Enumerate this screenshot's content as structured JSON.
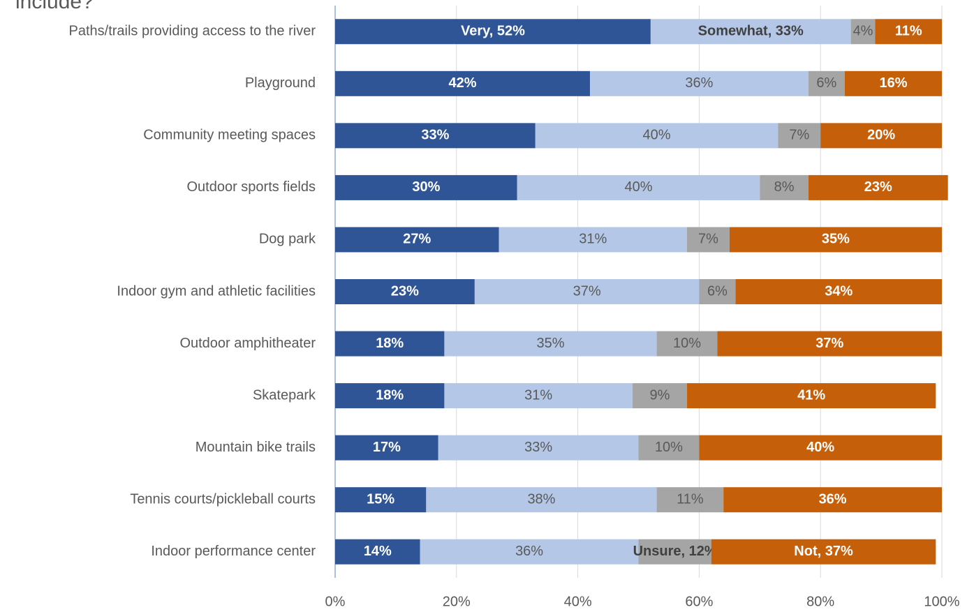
{
  "chart_data": {
    "type": "stacked-bar-horizontal",
    "title": "include?",
    "categories": [
      "Paths/trails providing access to the river",
      "Playground",
      "Community meeting spaces",
      "Outdoor sports fields",
      "Dog park",
      "Indoor gym and athletic facilities",
      "Outdoor amphitheater",
      "Skatepark",
      "Mountain bike trails",
      "Tennis courts/pickleball courts",
      "Indoor performance center"
    ],
    "series": [
      {
        "name": "Very",
        "color": "#2f5597",
        "values": [
          52,
          42,
          33,
          30,
          27,
          23,
          18,
          18,
          17,
          15,
          14
        ],
        "value_labels": [
          "Very, 52%",
          "42%",
          "33%",
          "30%",
          "27%",
          "23%",
          "18%",
          "18%",
          "17%",
          "15%",
          "14%"
        ]
      },
      {
        "name": "Somewhat",
        "color": "#b4c7e7",
        "values": [
          33,
          36,
          40,
          40,
          31,
          37,
          35,
          31,
          33,
          38,
          36
        ],
        "value_labels": [
          "Somewhat, 33%",
          "36%",
          "40%",
          "40%",
          "31%",
          "37%",
          "35%",
          "31%",
          "33%",
          "38%",
          "36%"
        ]
      },
      {
        "name": "Unsure",
        "color": "#a5a5a5",
        "values": [
          4,
          6,
          7,
          8,
          7,
          6,
          10,
          9,
          10,
          11,
          12
        ],
        "value_labels": [
          "4%",
          "6%",
          "7%",
          "8%",
          "7%",
          "6%",
          "10%",
          "9%",
          "10%",
          "11%",
          "Unsure, 12%"
        ]
      },
      {
        "name": "Not",
        "color": "#c65f0a",
        "values": [
          11,
          16,
          20,
          23,
          35,
          34,
          37,
          41,
          40,
          36,
          37
        ],
        "value_labels": [
          "11%",
          "16%",
          "20%",
          "23%",
          "35%",
          "34%",
          "37%",
          "41%",
          "40%",
          "36%",
          "Not, 37%"
        ]
      }
    ],
    "xlim": [
      0,
      100
    ],
    "xticks": [
      {
        "value": 0,
        "label": "0%"
      },
      {
        "value": 20,
        "label": "20%"
      },
      {
        "value": 40,
        "label": "40%"
      },
      {
        "value": 60,
        "label": "60%"
      },
      {
        "value": 80,
        "label": "80%"
      },
      {
        "value": 100,
        "label": "100%"
      }
    ],
    "grid": true
  }
}
